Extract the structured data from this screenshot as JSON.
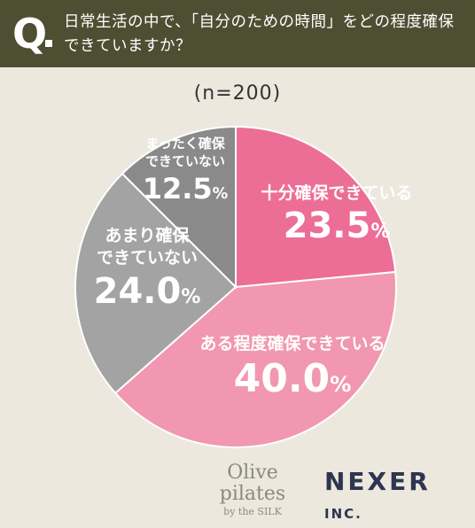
{
  "header": {
    "q_mark": "Q",
    "question": "日常生活の中で、「自分のための時間」をどの程度確保できていますか？"
  },
  "sample_label": "(n=200)",
  "chart_data": {
    "type": "pie",
    "categories": [
      "十分確保できている",
      "ある程度確保できている",
      "あまり確保できていない",
      "まったく確保できていない"
    ],
    "values": [
      23.5,
      40.0,
      24.0,
      12.5
    ],
    "value_labels": [
      "23.5",
      "40.0",
      "24.0",
      "12.5"
    ],
    "unit": "%",
    "colors": [
      "#ec6e96",
      "#f197b1",
      "#a3a3a3",
      "#8a8a8a"
    ],
    "legend": "none"
  },
  "labels": {
    "s0": {
      "line1": "十分確保できている",
      "pct": "23.5",
      "unit": "%"
    },
    "s1": {
      "line1": "ある程度確保できている",
      "pct": "40.0",
      "unit": "%"
    },
    "s2": {
      "line1": "あまり確保",
      "line2": "できていない",
      "pct": "24.0",
      "unit": "%"
    },
    "s3": {
      "line1": "まったく確保",
      "line2": "できていない",
      "pct": "12.5",
      "unit": "%"
    }
  },
  "brand": {
    "left_main": "Olive pilates",
    "left_sub": "by the SILK",
    "right_main": "NEXER",
    "right_inc": "INC."
  }
}
